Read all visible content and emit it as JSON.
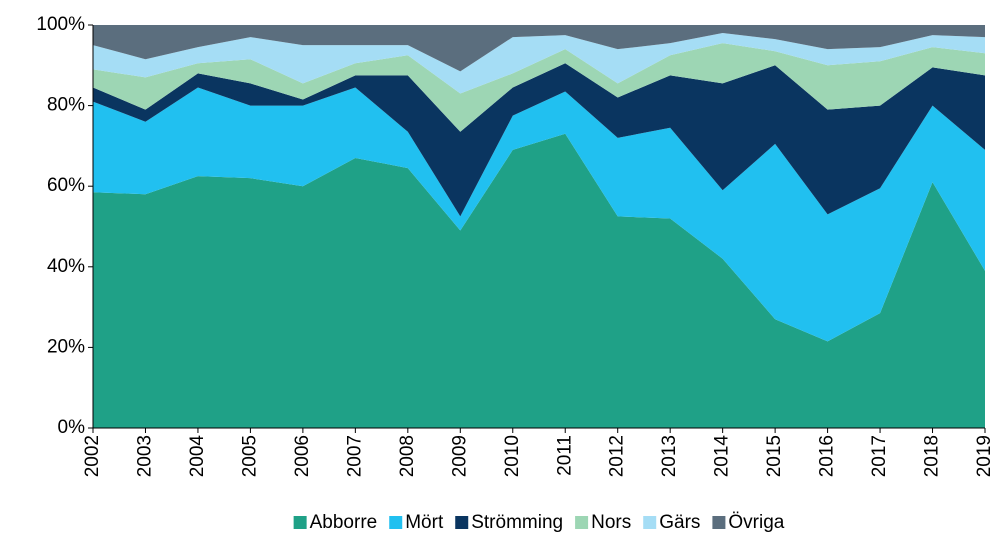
{
  "chart_data": {
    "type": "stacked_area",
    "categories": [
      "2002",
      "2003",
      "2004",
      "2005",
      "2006",
      "2007",
      "2008",
      "2009",
      "2010",
      "2011",
      "2012",
      "2013",
      "2014",
      "2015",
      "2016",
      "2017",
      "2018",
      "2019"
    ],
    "series": [
      {
        "name": "Abborre",
        "color": "#1fa187",
        "values": [
          58.5,
          58,
          62.5,
          62,
          60,
          67,
          64.5,
          49,
          69,
          73,
          52.5,
          52,
          42,
          27,
          21.5,
          28.5,
          61,
          39
        ]
      },
      {
        "name": "Mört",
        "color": "#21c0f0",
        "values": [
          22.5,
          18,
          22,
          18,
          20,
          17.5,
          9,
          3.5,
          8.5,
          10.5,
          19.5,
          22.5,
          17,
          43.5,
          31.5,
          31,
          19,
          30
        ]
      },
      {
        "name": "Strömming",
        "color": "#0a3560",
        "values": [
          3.5,
          3,
          3.5,
          5.5,
          1.5,
          3,
          14,
          21,
          7,
          7,
          10,
          13,
          26.5,
          19.5,
          26,
          20.5,
          9.5,
          18.5
        ]
      },
      {
        "name": "Nors",
        "color": "#9dd6b4",
        "values": [
          4.5,
          8,
          2.5,
          6,
          4,
          3,
          5,
          9.5,
          3.5,
          3.5,
          3.5,
          5,
          10,
          3.5,
          11,
          11,
          5,
          5.5
        ]
      },
      {
        "name": "Gärs",
        "color": "#a5ddf5",
        "values": [
          6,
          4.5,
          4,
          5.5,
          9.5,
          4.5,
          2.5,
          5.5,
          9,
          3.5,
          8.5,
          3,
          2.5,
          3,
          4,
          3.5,
          3,
          4
        ]
      },
      {
        "name": "Övriga",
        "color": "#5b6e7e",
        "values": [
          5,
          8.5,
          5.5,
          3,
          5,
          5,
          5,
          11.5,
          3,
          2.5,
          6,
          4.5,
          2,
          3.5,
          6,
          5.5,
          2.5,
          3
        ]
      }
    ],
    "ylim": [
      0,
      100
    ],
    "yticks": [
      {
        "value": 0,
        "label": "0%"
      },
      {
        "value": 20,
        "label": "20%"
      },
      {
        "value": 40,
        "label": "40%"
      },
      {
        "value": 60,
        "label": "60%"
      },
      {
        "value": 80,
        "label": "80%"
      },
      {
        "value": 100,
        "label": "100%"
      }
    ]
  }
}
